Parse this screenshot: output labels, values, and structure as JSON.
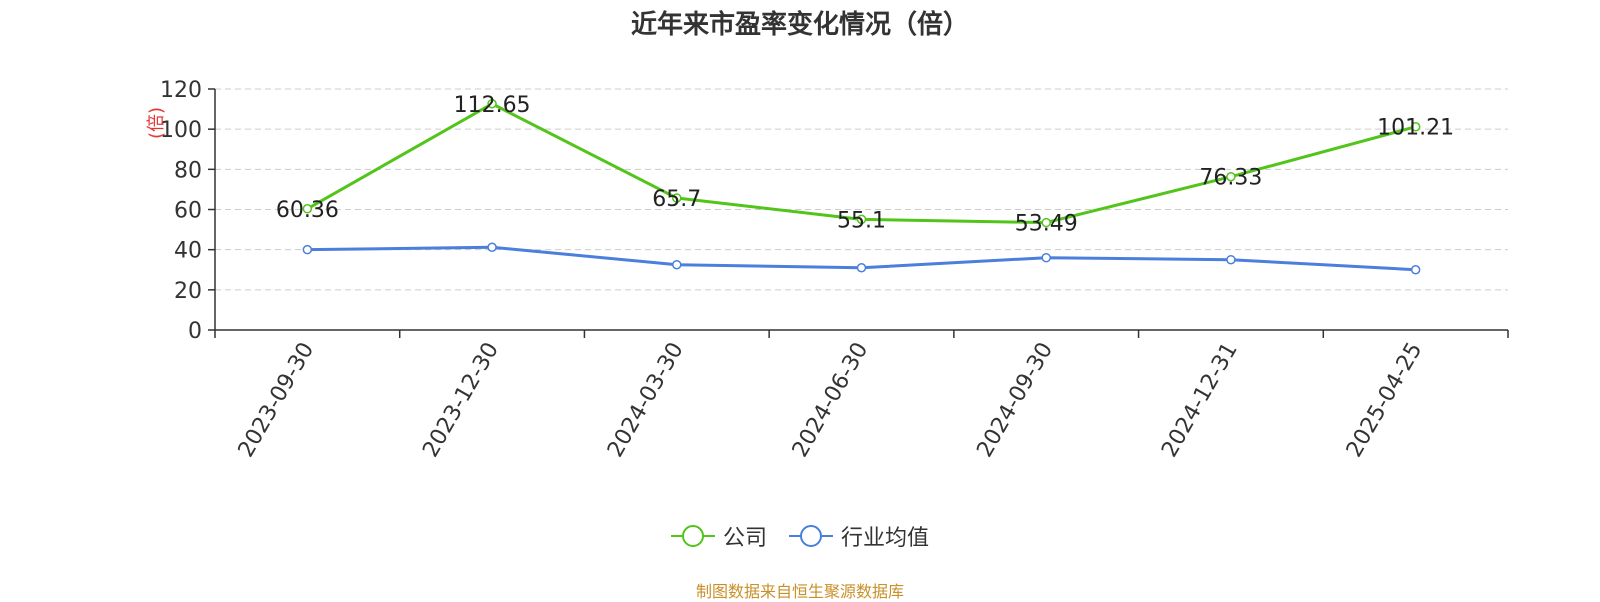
{
  "source_note": "制图数据来自恒生聚源数据库",
  "colors": {
    "company": "#52c41a",
    "industry": "#4a7fdc",
    "axis": "#333333",
    "grid": "#cccccc",
    "ylabel": "#e53935",
    "source": "#c8902a"
  },
  "chart_data": {
    "type": "line",
    "title": "近年来市盈率变化情况（倍）",
    "ylabel": "(倍)",
    "xlabel": "",
    "categories": [
      "2023-09-30",
      "2023-12-30",
      "2024-03-30",
      "2024-06-30",
      "2024-09-30",
      "2024-12-31",
      "2025-04-25"
    ],
    "ylim": [
      0,
      120
    ],
    "yticks": [
      0,
      20,
      40,
      60,
      80,
      100,
      120
    ],
    "grid": true,
    "legend_position": "bottom-center",
    "series": [
      {
        "name": "公司",
        "values": [
          60.36,
          112.65,
          65.7,
          55.1,
          53.49,
          76.33,
          101.21
        ],
        "labels": [
          "60.36",
          "112.65",
          "65.7",
          "55.1",
          "53.49",
          "76.33",
          "101.21"
        ]
      },
      {
        "name": "行业均值",
        "values": [
          40,
          41.2,
          32.5,
          31,
          36,
          35,
          30
        ]
      }
    ]
  }
}
